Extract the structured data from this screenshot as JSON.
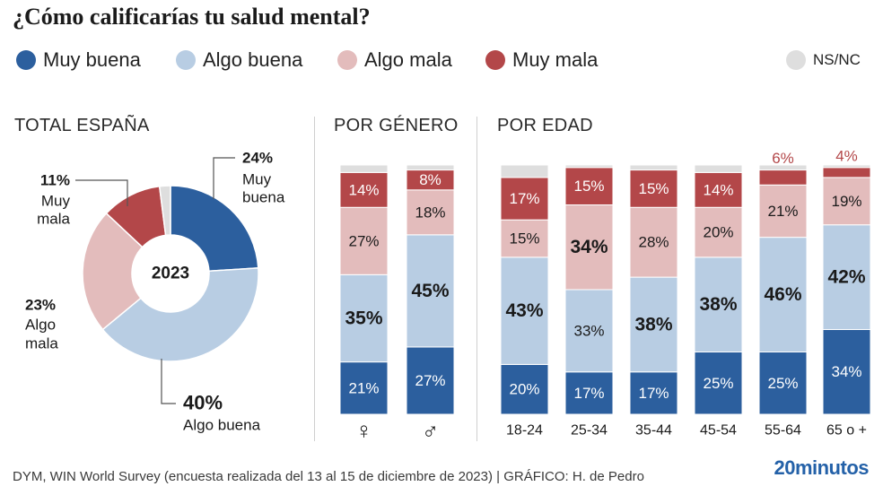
{
  "title": "¿Cómo calificarías tu salud mental?",
  "colors": {
    "muy_buena": "#2c5f9e",
    "algo_buena": "#b8cde3",
    "algo_mala": "#e3bcbc",
    "muy_mala": "#b34749",
    "nsnc": "#dedede",
    "label_dark": "#1a1a1a",
    "label_light": "#ffffff",
    "label_red": "#b34749"
  },
  "legend": [
    {
      "label": "Muy buena",
      "color": "#2c5f9e"
    },
    {
      "label": "Algo buena",
      "color": "#b8cde3"
    },
    {
      "label": "Algo mala",
      "color": "#e3bcbc"
    },
    {
      "label": "Muy mala",
      "color": "#b34749"
    },
    {
      "label": "NS/NC",
      "color": "#dedede"
    }
  ],
  "sections": {
    "total": "TOTAL ESPAÑA",
    "genero": "POR GÉNERO",
    "edad": "POR EDAD"
  },
  "chart_data": [
    {
      "type": "pie",
      "title": "TOTAL ESPAÑA",
      "center_label": "2023",
      "slices": [
        {
          "label": "Muy buena",
          "value": 24,
          "display": "24%",
          "color": "#2c5f9e"
        },
        {
          "label": "Algo buena",
          "value": 40,
          "display": "40%",
          "color": "#b8cde3"
        },
        {
          "label": "Algo mala",
          "value": 23,
          "display": "23%",
          "color": "#e3bcbc"
        },
        {
          "label": "Muy mala",
          "value": 11,
          "display": "11%",
          "color": "#b34749"
        },
        {
          "label": "NS/NC",
          "value": 2,
          "display": "",
          "color": "#dedede"
        }
      ]
    },
    {
      "type": "bar",
      "stacked": true,
      "title": "POR GÉNERO",
      "categories": [
        "♀",
        "♂"
      ],
      "series": [
        {
          "name": "Muy buena",
          "values": [
            21,
            27
          ],
          "labels": [
            "21%",
            "27%"
          ]
        },
        {
          "name": "Algo buena",
          "values": [
            35,
            45
          ],
          "labels": [
            "35%",
            "45%"
          ]
        },
        {
          "name": "Algo mala",
          "values": [
            27,
            18
          ],
          "labels": [
            "27%",
            "18%"
          ]
        },
        {
          "name": "Muy mala",
          "values": [
            14,
            8
          ],
          "labels": [
            "14%",
            "8%"
          ]
        },
        {
          "name": "NS/NC",
          "values": [
            3,
            2
          ],
          "labels": [
            "",
            ""
          ]
        }
      ],
      "emphasis": [
        [
          false,
          false
        ],
        [
          true,
          true
        ],
        [
          false,
          false
        ],
        [
          false,
          false
        ]
      ]
    },
    {
      "type": "bar",
      "stacked": true,
      "title": "POR EDAD",
      "categories": [
        "18-24",
        "25-34",
        "35-44",
        "45-54",
        "55-64",
        "65 o +"
      ],
      "series": [
        {
          "name": "Muy buena",
          "values": [
            20,
            17,
            17,
            25,
            25,
            34
          ],
          "labels": [
            "20%",
            "17%",
            "17%",
            "25%",
            "25%",
            "34%"
          ]
        },
        {
          "name": "Algo buena",
          "values": [
            43,
            33,
            38,
            38,
            46,
            42
          ],
          "labels": [
            "43%",
            "33%",
            "38%",
            "38%",
            "46%",
            "42%"
          ]
        },
        {
          "name": "Algo mala",
          "values": [
            15,
            34,
            28,
            20,
            21,
            19
          ],
          "labels": [
            "15%",
            "34%",
            "28%",
            "20%",
            "21%",
            "19%"
          ]
        },
        {
          "name": "Muy mala",
          "values": [
            17,
            15,
            15,
            14,
            6,
            4
          ],
          "labels": [
            "17%",
            "15%",
            "15%",
            "14%",
            "6%",
            "4%"
          ]
        },
        {
          "name": "NS/NC",
          "values": [
            5,
            1,
            2,
            3,
            2,
            1
          ],
          "labels": [
            "",
            "",
            "",
            "",
            "",
            ""
          ]
        }
      ],
      "emphasis": [
        [
          false,
          false,
          false,
          false,
          false,
          false
        ],
        [
          true,
          false,
          true,
          true,
          true,
          true
        ],
        [
          false,
          true,
          false,
          false,
          false,
          false
        ],
        [
          false,
          false,
          false,
          false,
          false,
          false
        ]
      ],
      "label_outside": [
        [
          false,
          false,
          false,
          false,
          false,
          false
        ],
        [
          false,
          false,
          false,
          false,
          false,
          false
        ],
        [
          false,
          false,
          false,
          false,
          false,
          false
        ],
        [
          false,
          false,
          false,
          false,
          true,
          true
        ]
      ]
    }
  ],
  "footer": {
    "source": "DYM, WIN World Survey (encuesta realizada del 13 al 15 de diciembre de 2023)  |  GRÁFICO: H. de Pedro",
    "brand_num": "20",
    "brand_text": "minutos"
  }
}
